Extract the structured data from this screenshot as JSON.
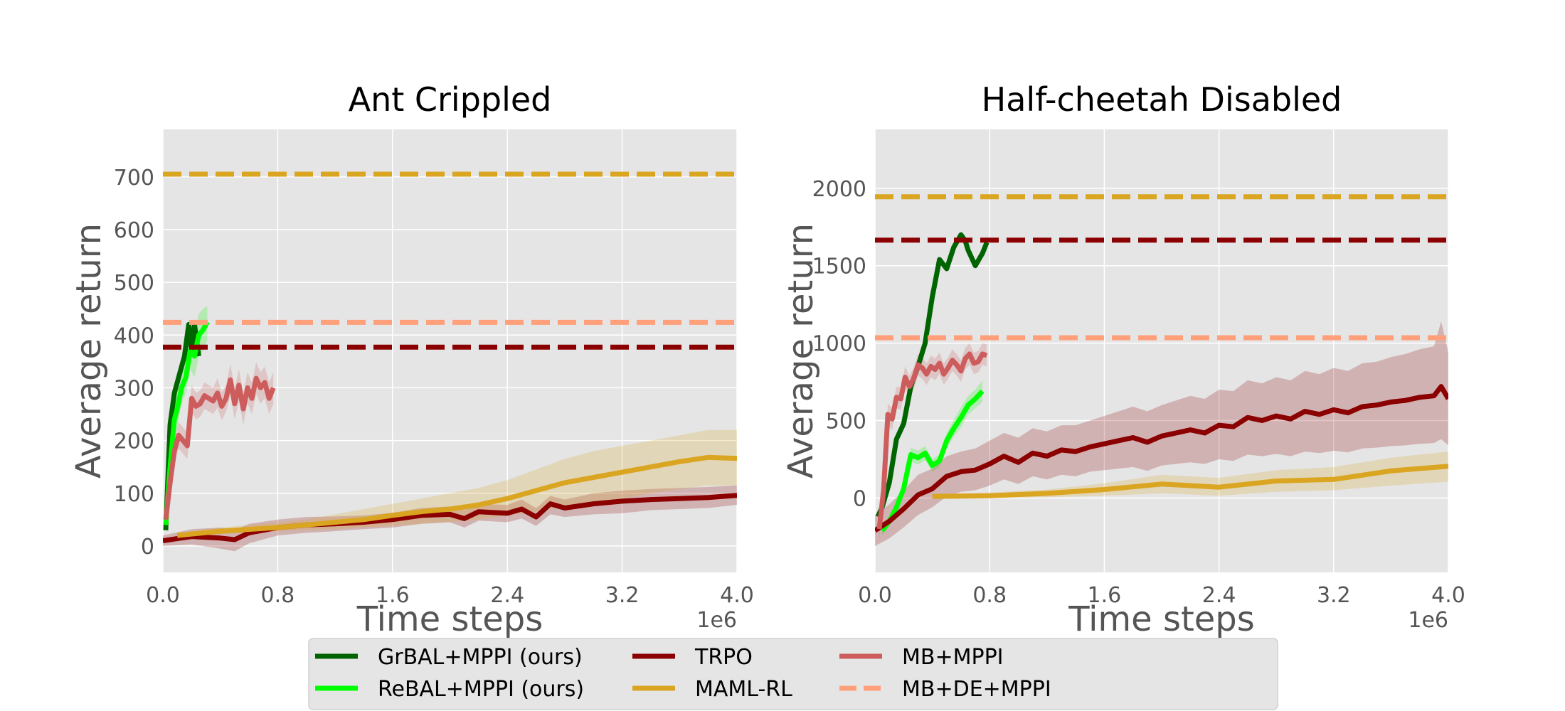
{
  "chart_data": [
    {
      "type": "line",
      "title": "Ant Crippled",
      "xlabel": "Time steps",
      "ylabel": "Average return",
      "x_scale_label": "1e6",
      "xlim": [
        0,
        4.0
      ],
      "ylim": [
        -50,
        790
      ],
      "xticks": [
        0.0,
        0.8,
        1.6,
        2.4,
        3.2,
        4.0
      ],
      "xtick_labels": [
        "0.0",
        "0.8",
        "1.6",
        "2.4",
        "3.2",
        "4.0"
      ],
      "yticks": [
        0,
        100,
        200,
        300,
        400,
        500,
        600,
        700
      ],
      "ytick_labels": [
        "0",
        "100",
        "200",
        "300",
        "400",
        "500",
        "600",
        "700"
      ],
      "grid": true,
      "series": [
        {
          "name": "GrBAL+MPPI (ours)",
          "color": "#006400",
          "style": "solid",
          "x": [
            0.02,
            0.05,
            0.08,
            0.12,
            0.15,
            0.18,
            0.2,
            0.22,
            0.25
          ],
          "y": [
            30,
            230,
            290,
            330,
            360,
            420,
            370,
            420,
            360
          ]
        },
        {
          "name": "ReBAL+MPPI (ours)",
          "color": "#00ff00",
          "style": "solid",
          "x": [
            0.02,
            0.05,
            0.08,
            0.1,
            0.13,
            0.16,
            0.19,
            0.22,
            0.25,
            0.28,
            0.31
          ],
          "y": [
            40,
            150,
            240,
            260,
            300,
            320,
            370,
            360,
            400,
            410,
            425
          ],
          "band_lower": [
            25,
            120,
            210,
            225,
            270,
            290,
            335,
            320,
            360,
            370,
            390
          ],
          "band_upper": [
            60,
            180,
            270,
            295,
            335,
            355,
            405,
            400,
            440,
            450,
            455
          ]
        },
        {
          "name": "TRPO",
          "color": "#8b0000",
          "style": "solid",
          "x": [
            0.0,
            0.2,
            0.4,
            0.5,
            0.6,
            0.8,
            1.0,
            1.2,
            1.4,
            1.6,
            1.8,
            2.0,
            2.1,
            2.2,
            2.4,
            2.5,
            2.6,
            2.7,
            2.8,
            3.0,
            3.2,
            3.4,
            3.6,
            3.8,
            4.0
          ],
          "y": [
            10,
            18,
            15,
            12,
            25,
            35,
            40,
            42,
            45,
            50,
            58,
            60,
            52,
            65,
            62,
            70,
            55,
            80,
            72,
            80,
            85,
            88,
            90,
            92,
            96
          ],
          "band_lower": [
            0,
            3,
            -5,
            -10,
            5,
            20,
            25,
            28,
            32,
            35,
            42,
            45,
            35,
            48,
            45,
            52,
            38,
            60,
            55,
            60,
            62,
            68,
            70,
            72,
            78
          ],
          "band_upper": [
            20,
            32,
            35,
            30,
            42,
            50,
            55,
            56,
            58,
            63,
            72,
            75,
            68,
            80,
            78,
            88,
            72,
            95,
            88,
            100,
            105,
            108,
            110,
            112,
            115
          ]
        },
        {
          "name": "MAML-RL",
          "color": "#daa520",
          "style": "solid",
          "x": [
            0.1,
            0.4,
            0.8,
            1.0,
            1.2,
            1.4,
            1.6,
            1.8,
            2.0,
            2.2,
            2.4,
            2.6,
            2.8,
            3.0,
            3.2,
            3.4,
            3.6,
            3.8,
            4.0
          ],
          "y": [
            20,
            28,
            35,
            40,
            45,
            50,
            58,
            65,
            70,
            78,
            90,
            105,
            120,
            130,
            140,
            150,
            160,
            168,
            166
          ],
          "band_lower": [
            15,
            22,
            28,
            30,
            32,
            35,
            38,
            42,
            45,
            50,
            58,
            65,
            75,
            82,
            90,
            100,
            108,
            115,
            115
          ],
          "band_upper": [
            25,
            35,
            45,
            50,
            60,
            70,
            80,
            90,
            100,
            110,
            125,
            145,
            165,
            180,
            190,
            200,
            210,
            220,
            220
          ]
        },
        {
          "name": "MB+MPPI",
          "color": "#cd5c5c",
          "style": "solid",
          "x": [
            0.02,
            0.05,
            0.08,
            0.11,
            0.14,
            0.17,
            0.2,
            0.23,
            0.26,
            0.29,
            0.32,
            0.35,
            0.38,
            0.41,
            0.44,
            0.47,
            0.5,
            0.53,
            0.56,
            0.59,
            0.62,
            0.65,
            0.68,
            0.71,
            0.74,
            0.77
          ],
          "y": [
            50,
            120,
            180,
            210,
            200,
            190,
            280,
            265,
            270,
            285,
            280,
            275,
            290,
            265,
            280,
            315,
            270,
            305,
            260,
            300,
            280,
            318,
            300,
            310,
            280,
            300
          ],
          "band_lower": [
            35,
            100,
            155,
            185,
            175,
            165,
            255,
            240,
            245,
            260,
            255,
            250,
            262,
            238,
            255,
            285,
            240,
            275,
            230,
            270,
            250,
            288,
            270,
            280,
            250,
            270
          ],
          "band_upper": [
            65,
            140,
            205,
            235,
            225,
            215,
            305,
            290,
            295,
            310,
            305,
            300,
            318,
            292,
            305,
            345,
            300,
            335,
            290,
            330,
            310,
            348,
            330,
            340,
            310,
            330
          ]
        },
        {
          "name": "MB+DE+MPPI",
          "color": "#ffa07a",
          "style": "dashed",
          "x": [
            0,
            4.0
          ],
          "y": [
            424,
            424
          ]
        },
        {
          "name": "MAML-RL (dashed)",
          "color": "#daa520",
          "style": "dashed",
          "x": [
            0,
            4.0
          ],
          "y": [
            705,
            705
          ]
        },
        {
          "name": "TRPO (dashed)",
          "color": "#8b0000",
          "style": "dashed",
          "x": [
            0,
            4.0
          ],
          "y": [
            377,
            377
          ]
        }
      ]
    },
    {
      "type": "line",
      "title": "Half-cheetah Disabled",
      "xlabel": "Time steps",
      "ylabel": "Average return",
      "x_scale_label": "1e6",
      "xlim": [
        0,
        4.0
      ],
      "ylim": [
        -480,
        2380
      ],
      "xticks": [
        0.0,
        0.8,
        1.6,
        2.4,
        3.2,
        4.0
      ],
      "xtick_labels": [
        "0.0",
        "0.8",
        "1.6",
        "2.4",
        "3.2",
        "4.0"
      ],
      "yticks": [
        0,
        500,
        1000,
        1500,
        2000
      ],
      "ytick_labels": [
        "0",
        "500",
        "1000",
        "1500",
        "2000"
      ],
      "grid": true,
      "series": [
        {
          "name": "GrBAL+MPPI (ours)",
          "color": "#006400",
          "style": "solid",
          "x": [
            0.02,
            0.05,
            0.1,
            0.15,
            0.2,
            0.25,
            0.3,
            0.35,
            0.4,
            0.45,
            0.5,
            0.55,
            0.6,
            0.63,
            0.65,
            0.7,
            0.75,
            0.78
          ],
          "y": [
            -120,
            -60,
            100,
            380,
            480,
            720,
            850,
            1000,
            1300,
            1540,
            1480,
            1620,
            1700,
            1660,
            1600,
            1500,
            1580,
            1650
          ]
        },
        {
          "name": "ReBAL+MPPI (ours)",
          "color": "#00ff00",
          "style": "solid",
          "x": [
            0.05,
            0.1,
            0.15,
            0.2,
            0.25,
            0.3,
            0.35,
            0.4,
            0.45,
            0.5,
            0.55,
            0.6,
            0.65,
            0.7,
            0.75
          ],
          "y": [
            -210,
            -150,
            -60,
            60,
            280,
            260,
            290,
            210,
            240,
            370,
            450,
            520,
            600,
            640,
            690
          ],
          "band_lower": [
            -240,
            -180,
            -100,
            20,
            235,
            215,
            245,
            170,
            200,
            320,
            395,
            455,
            540,
            580,
            620
          ],
          "band_upper": [
            -180,
            -120,
            -20,
            100,
            325,
            305,
            335,
            250,
            280,
            420,
            505,
            585,
            660,
            700,
            760
          ]
        },
        {
          "name": "TRPO",
          "color": "#8b0000",
          "style": "solid",
          "x": [
            0.0,
            0.1,
            0.2,
            0.3,
            0.4,
            0.5,
            0.6,
            0.7,
            0.8,
            0.9,
            1.0,
            1.1,
            1.2,
            1.3,
            1.4,
            1.5,
            1.6,
            1.7,
            1.8,
            1.9,
            2.0,
            2.1,
            2.2,
            2.3,
            2.4,
            2.5,
            2.6,
            2.7,
            2.8,
            2.9,
            3.0,
            3.1,
            3.2,
            3.3,
            3.4,
            3.5,
            3.6,
            3.7,
            3.8,
            3.9,
            3.95,
            4.0
          ],
          "y": [
            -210,
            -150,
            -70,
            20,
            60,
            140,
            170,
            180,
            220,
            270,
            230,
            290,
            270,
            310,
            300,
            330,
            350,
            370,
            390,
            360,
            400,
            420,
            440,
            420,
            470,
            460,
            520,
            500,
            530,
            510,
            560,
            540,
            570,
            550,
            590,
            600,
            620,
            630,
            650,
            660,
            720,
            640
          ],
          "band_lower": [
            -310,
            -260,
            -190,
            -110,
            -60,
            10,
            40,
            50,
            80,
            120,
            90,
            140,
            120,
            150,
            140,
            170,
            180,
            190,
            200,
            175,
            210,
            220,
            230,
            220,
            250,
            240,
            280,
            270,
            285,
            270,
            300,
            290,
            305,
            295,
            320,
            325,
            335,
            340,
            350,
            355,
            380,
            340
          ],
          "band_upper": [
            -110,
            -40,
            50,
            150,
            190,
            270,
            300,
            320,
            370,
            420,
            390,
            450,
            430,
            470,
            470,
            500,
            530,
            560,
            590,
            560,
            600,
            630,
            660,
            640,
            700,
            690,
            760,
            740,
            780,
            760,
            820,
            800,
            840,
            820,
            870,
            880,
            910,
            930,
            960,
            980,
            1140,
            940
          ]
        },
        {
          "name": "MAML-RL",
          "color": "#daa520",
          "style": "solid",
          "x": [
            0.4,
            0.8,
            1.2,
            1.6,
            2.0,
            2.4,
            2.8,
            3.2,
            3.6,
            4.0
          ],
          "y": [
            10,
            15,
            30,
            55,
            90,
            70,
            110,
            120,
            175,
            205
          ],
          "band_lower": [
            -5,
            0,
            5,
            15,
            30,
            15,
            40,
            50,
            80,
            105
          ],
          "band_upper": [
            25,
            35,
            55,
            95,
            150,
            130,
            180,
            200,
            260,
            300
          ]
        },
        {
          "name": "MB+MPPI",
          "color": "#cd5c5c",
          "style": "solid",
          "x": [
            0.03,
            0.06,
            0.09,
            0.12,
            0.15,
            0.18,
            0.21,
            0.24,
            0.27,
            0.3,
            0.33,
            0.36,
            0.39,
            0.42,
            0.45,
            0.48,
            0.51,
            0.54,
            0.57,
            0.6,
            0.63,
            0.66,
            0.69,
            0.72,
            0.75,
            0.78
          ],
          "y": [
            -200,
            50,
            540,
            510,
            650,
            640,
            780,
            720,
            770,
            860,
            840,
            800,
            850,
            830,
            870,
            800,
            840,
            890,
            860,
            820,
            900,
            930,
            870,
            880,
            930,
            920
          ],
          "band_lower": [
            -260,
            -20,
            470,
            440,
            580,
            570,
            710,
            650,
            700,
            790,
            770,
            730,
            780,
            760,
            800,
            730,
            770,
            820,
            790,
            750,
            830,
            860,
            800,
            810,
            860,
            850
          ],
          "band_upper": [
            -140,
            120,
            610,
            580,
            720,
            710,
            850,
            790,
            840,
            930,
            910,
            870,
            920,
            900,
            940,
            870,
            910,
            960,
            930,
            890,
            970,
            1000,
            940,
            950,
            1000,
            990
          ]
        },
        {
          "name": "MB+DE+MPPI",
          "color": "#ffa07a",
          "style": "dashed",
          "x": [
            0,
            4.0
          ],
          "y": [
            1035,
            1035
          ]
        },
        {
          "name": "MAML-RL (dashed)",
          "color": "#daa520",
          "style": "dashed",
          "x": [
            0,
            4.0
          ],
          "y": [
            1945,
            1945
          ]
        },
        {
          "name": "TRPO (dashed)",
          "color": "#8b0000",
          "style": "dashed",
          "x": [
            0,
            4.0
          ],
          "y": [
            1665,
            1665
          ]
        }
      ]
    }
  ],
  "legend": {
    "position": "bottom-center",
    "entries": [
      {
        "label": "GrBAL+MPPI (ours)",
        "color": "#006400",
        "style": "solid"
      },
      {
        "label": "ReBAL+MPPI (ours)",
        "color": "#00ff00",
        "style": "solid"
      },
      {
        "label": "TRPO",
        "color": "#8b0000",
        "style": "solid"
      },
      {
        "label": "MAML-RL",
        "color": "#daa520",
        "style": "solid"
      },
      {
        "label": "MB+MPPI",
        "color": "#cd5c5c",
        "style": "solid"
      },
      {
        "label": "MB+DE+MPPI",
        "color": "#ffa07a",
        "style": "dashed"
      }
    ]
  },
  "colors": {
    "plot_background": "#e5e5e5",
    "grid": "#ffffff",
    "legend_background": "#e5e5e5"
  }
}
